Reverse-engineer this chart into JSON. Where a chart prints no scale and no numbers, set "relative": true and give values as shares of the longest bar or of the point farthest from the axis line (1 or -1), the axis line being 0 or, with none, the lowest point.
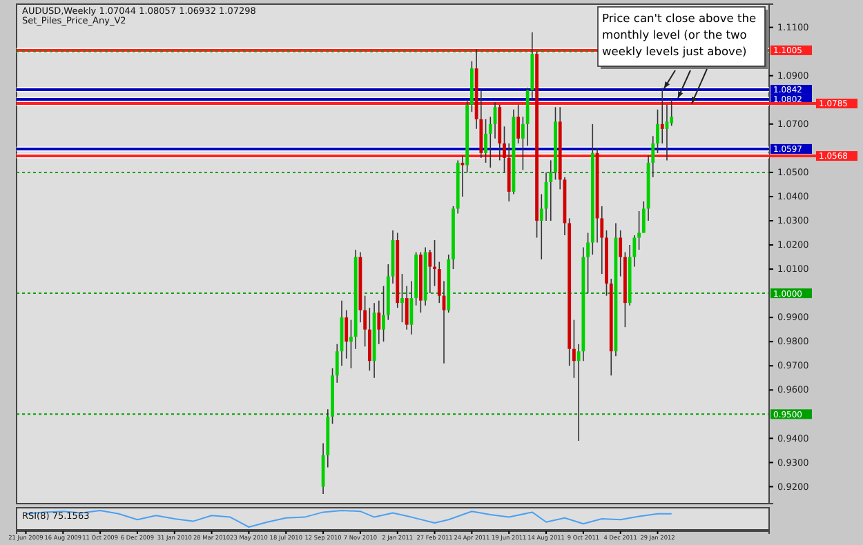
{
  "chart_data": [
    {
      "type": "candlestick",
      "title": "AUDUSD,Weekly  1.07044 1.08057 1.06932 1.07298",
      "subtitle": "Set_Piles_Price_Any_V2",
      "x": [
        "2010-09-12",
        "2010-09-19",
        "2010-09-26",
        "2010-10-03",
        "2010-10-10",
        "2010-10-17",
        "2010-10-24",
        "2010-10-31",
        "2010-11-07",
        "2010-11-14",
        "2010-11-21",
        "2010-11-28",
        "2010-12-05",
        "2010-12-12",
        "2010-12-19",
        "2010-12-26",
        "2011-01-02",
        "2011-01-09",
        "2011-01-16",
        "2011-01-23",
        "2011-01-30",
        "2011-02-06",
        "2011-02-13",
        "2011-02-20",
        "2011-02-27",
        "2011-03-06",
        "2011-03-13",
        "2011-03-20",
        "2011-03-27",
        "2011-04-03",
        "2011-04-10",
        "2011-04-17",
        "2011-04-24",
        "2011-05-01",
        "2011-05-08",
        "2011-05-15",
        "2011-05-22",
        "2011-05-29",
        "2011-06-05",
        "2011-06-12",
        "2011-06-19",
        "2011-06-26",
        "2011-07-03",
        "2011-07-10",
        "2011-07-17",
        "2011-07-24",
        "2011-07-31",
        "2011-08-07",
        "2011-08-14",
        "2011-08-21",
        "2011-08-28",
        "2011-09-04",
        "2011-09-11",
        "2011-09-18",
        "2011-09-25",
        "2011-10-02",
        "2011-10-09",
        "2011-10-16",
        "2011-10-23",
        "2011-10-30",
        "2011-11-06",
        "2011-11-13",
        "2011-11-20",
        "2011-11-27",
        "2011-12-04",
        "2011-12-11",
        "2011-12-18",
        "2011-12-25",
        "2012-01-01",
        "2012-01-08",
        "2012-01-15",
        "2012-01-22",
        "2012-01-29",
        "2012-02-05",
        "2012-02-12",
        "2012-02-19"
      ],
      "ohlc": [
        [
          0.92,
          0.938,
          0.917,
          0.933
        ],
        [
          0.933,
          0.952,
          0.928,
          0.949
        ],
        [
          0.949,
          0.969,
          0.946,
          0.966
        ],
        [
          0.966,
          0.979,
          0.963,
          0.976
        ],
        [
          0.976,
          0.997,
          0.97,
          0.99
        ],
        [
          0.99,
          0.993,
          0.973,
          0.98
        ],
        [
          0.98,
          0.989,
          0.969,
          0.982
        ],
        [
          0.982,
          1.018,
          0.977,
          1.015
        ],
        [
          1.015,
          1.017,
          0.988,
          0.993
        ],
        [
          0.993,
          0.999,
          0.978,
          0.985
        ],
        [
          0.985,
          0.994,
          0.968,
          0.972
        ],
        [
          0.972,
          0.996,
          0.965,
          0.992
        ],
        [
          0.992,
          0.997,
          0.979,
          0.985
        ],
        [
          0.985,
          1.003,
          0.98,
          0.991
        ],
        [
          0.991,
          1.012,
          0.989,
          1.007
        ],
        [
          1.007,
          1.026,
          1.004,
          1.022
        ],
        [
          1.022,
          1.025,
          0.994,
          0.996
        ],
        [
          0.996,
          1.008,
          0.988,
          0.998
        ],
        [
          0.998,
          1.003,
          0.985,
          0.987
        ],
        [
          0.987,
          1.005,
          0.983,
          0.998
        ],
        [
          0.998,
          1.017,
          0.995,
          1.016
        ],
        [
          1.016,
          1.017,
          0.992,
          0.997
        ],
        [
          0.997,
          1.019,
          0.995,
          1.017
        ],
        [
          1.017,
          1.018,
          1.0,
          1.011
        ],
        [
          1.011,
          1.022,
          1.003,
          1.01
        ],
        [
          1.01,
          1.013,
          0.996,
          0.999
        ],
        [
          0.999,
          1.005,
          0.971,
          0.993
        ],
        [
          0.993,
          1.016,
          0.992,
          1.014
        ],
        [
          1.014,
          1.036,
          1.01,
          1.035
        ],
        [
          1.035,
          1.055,
          1.033,
          1.054
        ],
        [
          1.054,
          1.057,
          1.04,
          1.053
        ],
        [
          1.053,
          1.08,
          1.05,
          1.078
        ],
        [
          1.078,
          1.096,
          1.075,
          1.093
        ],
        [
          1.093,
          1.101,
          1.068,
          1.072
        ],
        [
          1.072,
          1.084,
          1.056,
          1.058
        ],
        [
          1.058,
          1.072,
          1.054,
          1.066
        ],
        [
          1.066,
          1.073,
          1.052,
          1.07
        ],
        [
          1.07,
          1.079,
          1.064,
          1.077
        ],
        [
          1.077,
          1.078,
          1.055,
          1.062
        ],
        [
          1.062,
          1.069,
          1.05,
          1.056
        ],
        [
          1.056,
          1.062,
          1.038,
          1.042
        ],
        [
          1.042,
          1.076,
          1.041,
          1.073
        ],
        [
          1.073,
          1.078,
          1.062,
          1.064
        ],
        [
          1.064,
          1.073,
          1.051,
          1.07
        ],
        [
          1.07,
          1.085,
          1.061,
          1.084
        ],
        [
          1.084,
          1.108,
          1.08,
          1.099
        ],
        [
          1.099,
          1.1,
          1.023,
          1.03
        ],
        [
          1.03,
          1.041,
          1.014,
          1.035
        ],
        [
          1.035,
          1.05,
          1.03,
          1.046
        ],
        [
          1.046,
          1.055,
          1.03,
          1.05
        ],
        [
          1.05,
          1.077,
          1.047,
          1.071
        ],
        [
          1.071,
          1.077,
          1.043,
          1.047
        ],
        [
          1.047,
          1.048,
          1.024,
          1.029
        ],
        [
          1.029,
          1.031,
          0.97,
          0.977
        ],
        [
          0.977,
          0.989,
          0.965,
          0.972
        ],
        [
          0.972,
          0.979,
          0.939,
          0.976
        ],
        [
          0.976,
          1.019,
          0.972,
          1.015
        ],
        [
          1.015,
          1.025,
          1.0,
          1.021
        ],
        [
          1.021,
          1.07,
          1.016,
          1.058
        ],
        [
          1.058,
          1.06,
          1.021,
          1.031
        ],
        [
          1.031,
          1.036,
          1.008,
          1.023
        ],
        [
          1.023,
          1.026,
          0.999,
          1.004
        ],
        [
          1.004,
          1.006,
          0.966,
          0.976
        ],
        [
          0.976,
          1.029,
          0.974,
          1.023
        ],
        [
          1.023,
          1.026,
          1.007,
          1.015
        ],
        [
          1.015,
          1.017,
          0.986,
          0.996
        ],
        [
          0.996,
          1.02,
          0.995,
          1.015
        ],
        [
          1.015,
          1.024,
          1.011,
          1.023
        ],
        [
          1.023,
          1.034,
          1.018,
          1.025
        ],
        [
          1.025,
          1.038,
          1.025,
          1.035
        ],
        [
          1.035,
          1.057,
          1.03,
          1.054
        ],
        [
          1.054,
          1.065,
          1.048,
          1.062
        ],
        [
          1.062,
          1.076,
          1.058,
          1.07
        ],
        [
          1.07,
          1.085,
          1.062,
          1.068
        ],
        [
          1.068,
          1.078,
          1.055,
          1.071
        ],
        [
          1.0704,
          1.0806,
          1.0693,
          1.073
        ]
      ],
      "colors": [
        "#00d000",
        "#00d000",
        "#00d000",
        "#00d000",
        "#00d000",
        "#d00000",
        "#00d000",
        "#00d000",
        "#d00000",
        "#d00000",
        "#d00000",
        "#00d000",
        "#d00000",
        "#00d000",
        "#00d000",
        "#00d000",
        "#d00000",
        "#00d000",
        "#d00000",
        "#00d000",
        "#00d000",
        "#d00000",
        "#00d000",
        "#d00000",
        "#d00000",
        "#d00000",
        "#d00000",
        "#00d000",
        "#00d000",
        "#00d000",
        "#d00000",
        "#00d000",
        "#00d000",
        "#d00000",
        "#d00000",
        "#00d000",
        "#00d000",
        "#00d000",
        "#d00000",
        "#d00000",
        "#d00000",
        "#00d000",
        "#d00000",
        "#00d000",
        "#00d000",
        "#00d000",
        "#d00000",
        "#00d000",
        "#00d000",
        "#00d000",
        "#00d000",
        "#d00000",
        "#d00000",
        "#d00000",
        "#d00000",
        "#00d000",
        "#00d000",
        "#00d000",
        "#00d000",
        "#d00000",
        "#d00000",
        "#d00000",
        "#d00000",
        "#00d000",
        "#d00000",
        "#d00000",
        "#00d000",
        "#00d000",
        "#00d000",
        "#00d000",
        "#00d000",
        "#00d000",
        "#00d000",
        "#d00000",
        "#00d000",
        "#00d000"
      ],
      "xlim": [
        "2009-06-07",
        "2012-07-15"
      ],
      "ylim": [
        0.913,
        1.1196
      ],
      "yticks": [
        {
          "value": 0.92,
          "label": "0.9200"
        },
        {
          "value": 0.93,
          "label": "0.9300"
        },
        {
          "value": 0.94,
          "label": "0.9400"
        },
        {
          "value": 0.96,
          "label": "0.9600"
        },
        {
          "value": 0.97,
          "label": "0.9700"
        },
        {
          "value": 0.98,
          "label": "0.9800"
        },
        {
          "value": 0.99,
          "label": "0.9900"
        },
        {
          "value": 1.01,
          "label": "1.0100"
        },
        {
          "value": 1.02,
          "label": "1.0200"
        },
        {
          "value": 1.03,
          "label": "1.0300"
        },
        {
          "value": 1.04,
          "label": "1.0400"
        },
        {
          "value": 1.05,
          "label": "1.0500"
        },
        {
          "value": 1.07,
          "label": "1.0700"
        },
        {
          "value": 1.09,
          "label": "1.0900"
        },
        {
          "value": 1.11,
          "label": "1.1100"
        }
      ],
      "xticks": [
        {
          "value": "2009-06-21",
          "label": "21 Jun 2009"
        },
        {
          "value": "2009-08-16",
          "label": "16 Aug 2009"
        },
        {
          "value": "2009-10-11",
          "label": "11 Oct 2009"
        },
        {
          "value": "2009-12-06",
          "label": "6 Dec 2009"
        },
        {
          "value": "2010-01-31",
          "label": "31 Jan 2010"
        },
        {
          "value": "2010-03-28",
          "label": "28 Mar 2010"
        },
        {
          "value": "2010-05-23",
          "label": "23 May 2010"
        },
        {
          "value": "2010-07-18",
          "label": "18 Jul 2010"
        },
        {
          "value": "2010-09-12",
          "label": "12 Sep 2010"
        },
        {
          "value": "2010-11-07",
          "label": "7 Nov 2010"
        },
        {
          "value": "2011-01-02",
          "label": "2 Jan 2011"
        },
        {
          "value": "2011-02-27",
          "label": "27 Feb 2011"
        },
        {
          "value": "2011-04-24",
          "label": "24 Apr 2011"
        },
        {
          "value": "2011-06-19",
          "label": "19 Jun 2011"
        },
        {
          "value": "2011-08-14",
          "label": "14 Aug 2011"
        },
        {
          "value": "2011-10-09",
          "label": "9 Oct 2011"
        },
        {
          "value": "2011-12-04",
          "label": "4 Dec 2011"
        },
        {
          "value": "2012-01-29",
          "label": "29 Jan 2012"
        }
      ],
      "ref_lines": [
        {
          "axis": "y",
          "value": 1.1005,
          "label": "1.1005",
          "color": "#ff2020",
          "line_style": "solid"
        },
        {
          "axis": "y",
          "value": 1.0842,
          "label": "1.0842",
          "color": "#0000c0",
          "line_style": "solid"
        },
        {
          "axis": "y",
          "value": 1.0802,
          "label": "1.0802",
          "color": "#0000c0",
          "line_style": "solid"
        },
        {
          "axis": "y",
          "value": 1.0785,
          "label": "1.0785",
          "color": "#ff2020",
          "line_style": "solid"
        },
        {
          "axis": "y",
          "value": 1.0597,
          "label": "1.0597",
          "color": "#0000c0",
          "line_style": "solid"
        },
        {
          "axis": "y",
          "value": 1.0568,
          "label": "1.0568",
          "color": "#ff2020",
          "line_style": "solid"
        },
        {
          "axis": "y",
          "value": 1.1,
          "label": null,
          "color": "#00a000",
          "line_style": "dotted"
        },
        {
          "axis": "y",
          "value": 1.05,
          "label": null,
          "color": "#00a000",
          "line_style": "dotted"
        },
        {
          "axis": "y",
          "value": 1.0,
          "label": "1.0000",
          "color": "#00a000",
          "line_style": "dotted"
        },
        {
          "axis": "y",
          "value": 0.95,
          "label": "0.9500",
          "color": "#00a000",
          "line_style": "dotted"
        }
      ],
      "annotations": [
        "Price can't close above the monthly level (or the two weekly levels just above)"
      ]
    },
    {
      "type": "line",
      "title": "RSI(8) 75.1563",
      "relative": true,
      "series": [
        {
          "color": "#4aa0f0",
          "x": [
            "2009-06-21",
            "2009-07-19",
            "2009-08-16",
            "2009-09-13",
            "2009-10-11",
            "2009-11-08",
            "2009-12-06",
            "2010-01-03",
            "2010-01-31",
            "2010-02-28",
            "2010-03-28",
            "2010-04-25",
            "2010-05-23",
            "2010-06-20",
            "2010-07-18",
            "2010-08-15",
            "2010-09-12",
            "2010-10-10",
            "2010-11-07",
            "2010-11-28",
            "2010-12-26",
            "2011-01-23",
            "2011-02-27",
            "2011-03-20",
            "2011-04-24",
            "2011-05-22",
            "2011-06-19",
            "2011-07-24",
            "2011-08-14",
            "2011-09-11",
            "2011-10-09",
            "2011-11-06",
            "2011-12-04",
            "2012-01-01",
            "2012-01-29",
            "2012-02-19"
          ],
          "values": [
            0.8,
            0.9,
            0.95,
            0.85,
            1.0,
            0.8,
            0.45,
            0.7,
            0.5,
            0.35,
            0.7,
            0.6,
            0,
            0.3,
            0.55,
            0.6,
            0.9,
            1.0,
            0.95,
            0.6,
            0.85,
            0.6,
            0.25,
            0.45,
            0.95,
            0.75,
            0.6,
            0.9,
            0.3,
            0.55,
            0.2,
            0.5,
            0.45,
            0.65,
            0.8,
            0.8
          ]
        }
      ],
      "xlim": [
        "2009-06-07",
        "2012-07-15"
      ],
      "marker": "none",
      "line_style": "solid"
    }
  ]
}
